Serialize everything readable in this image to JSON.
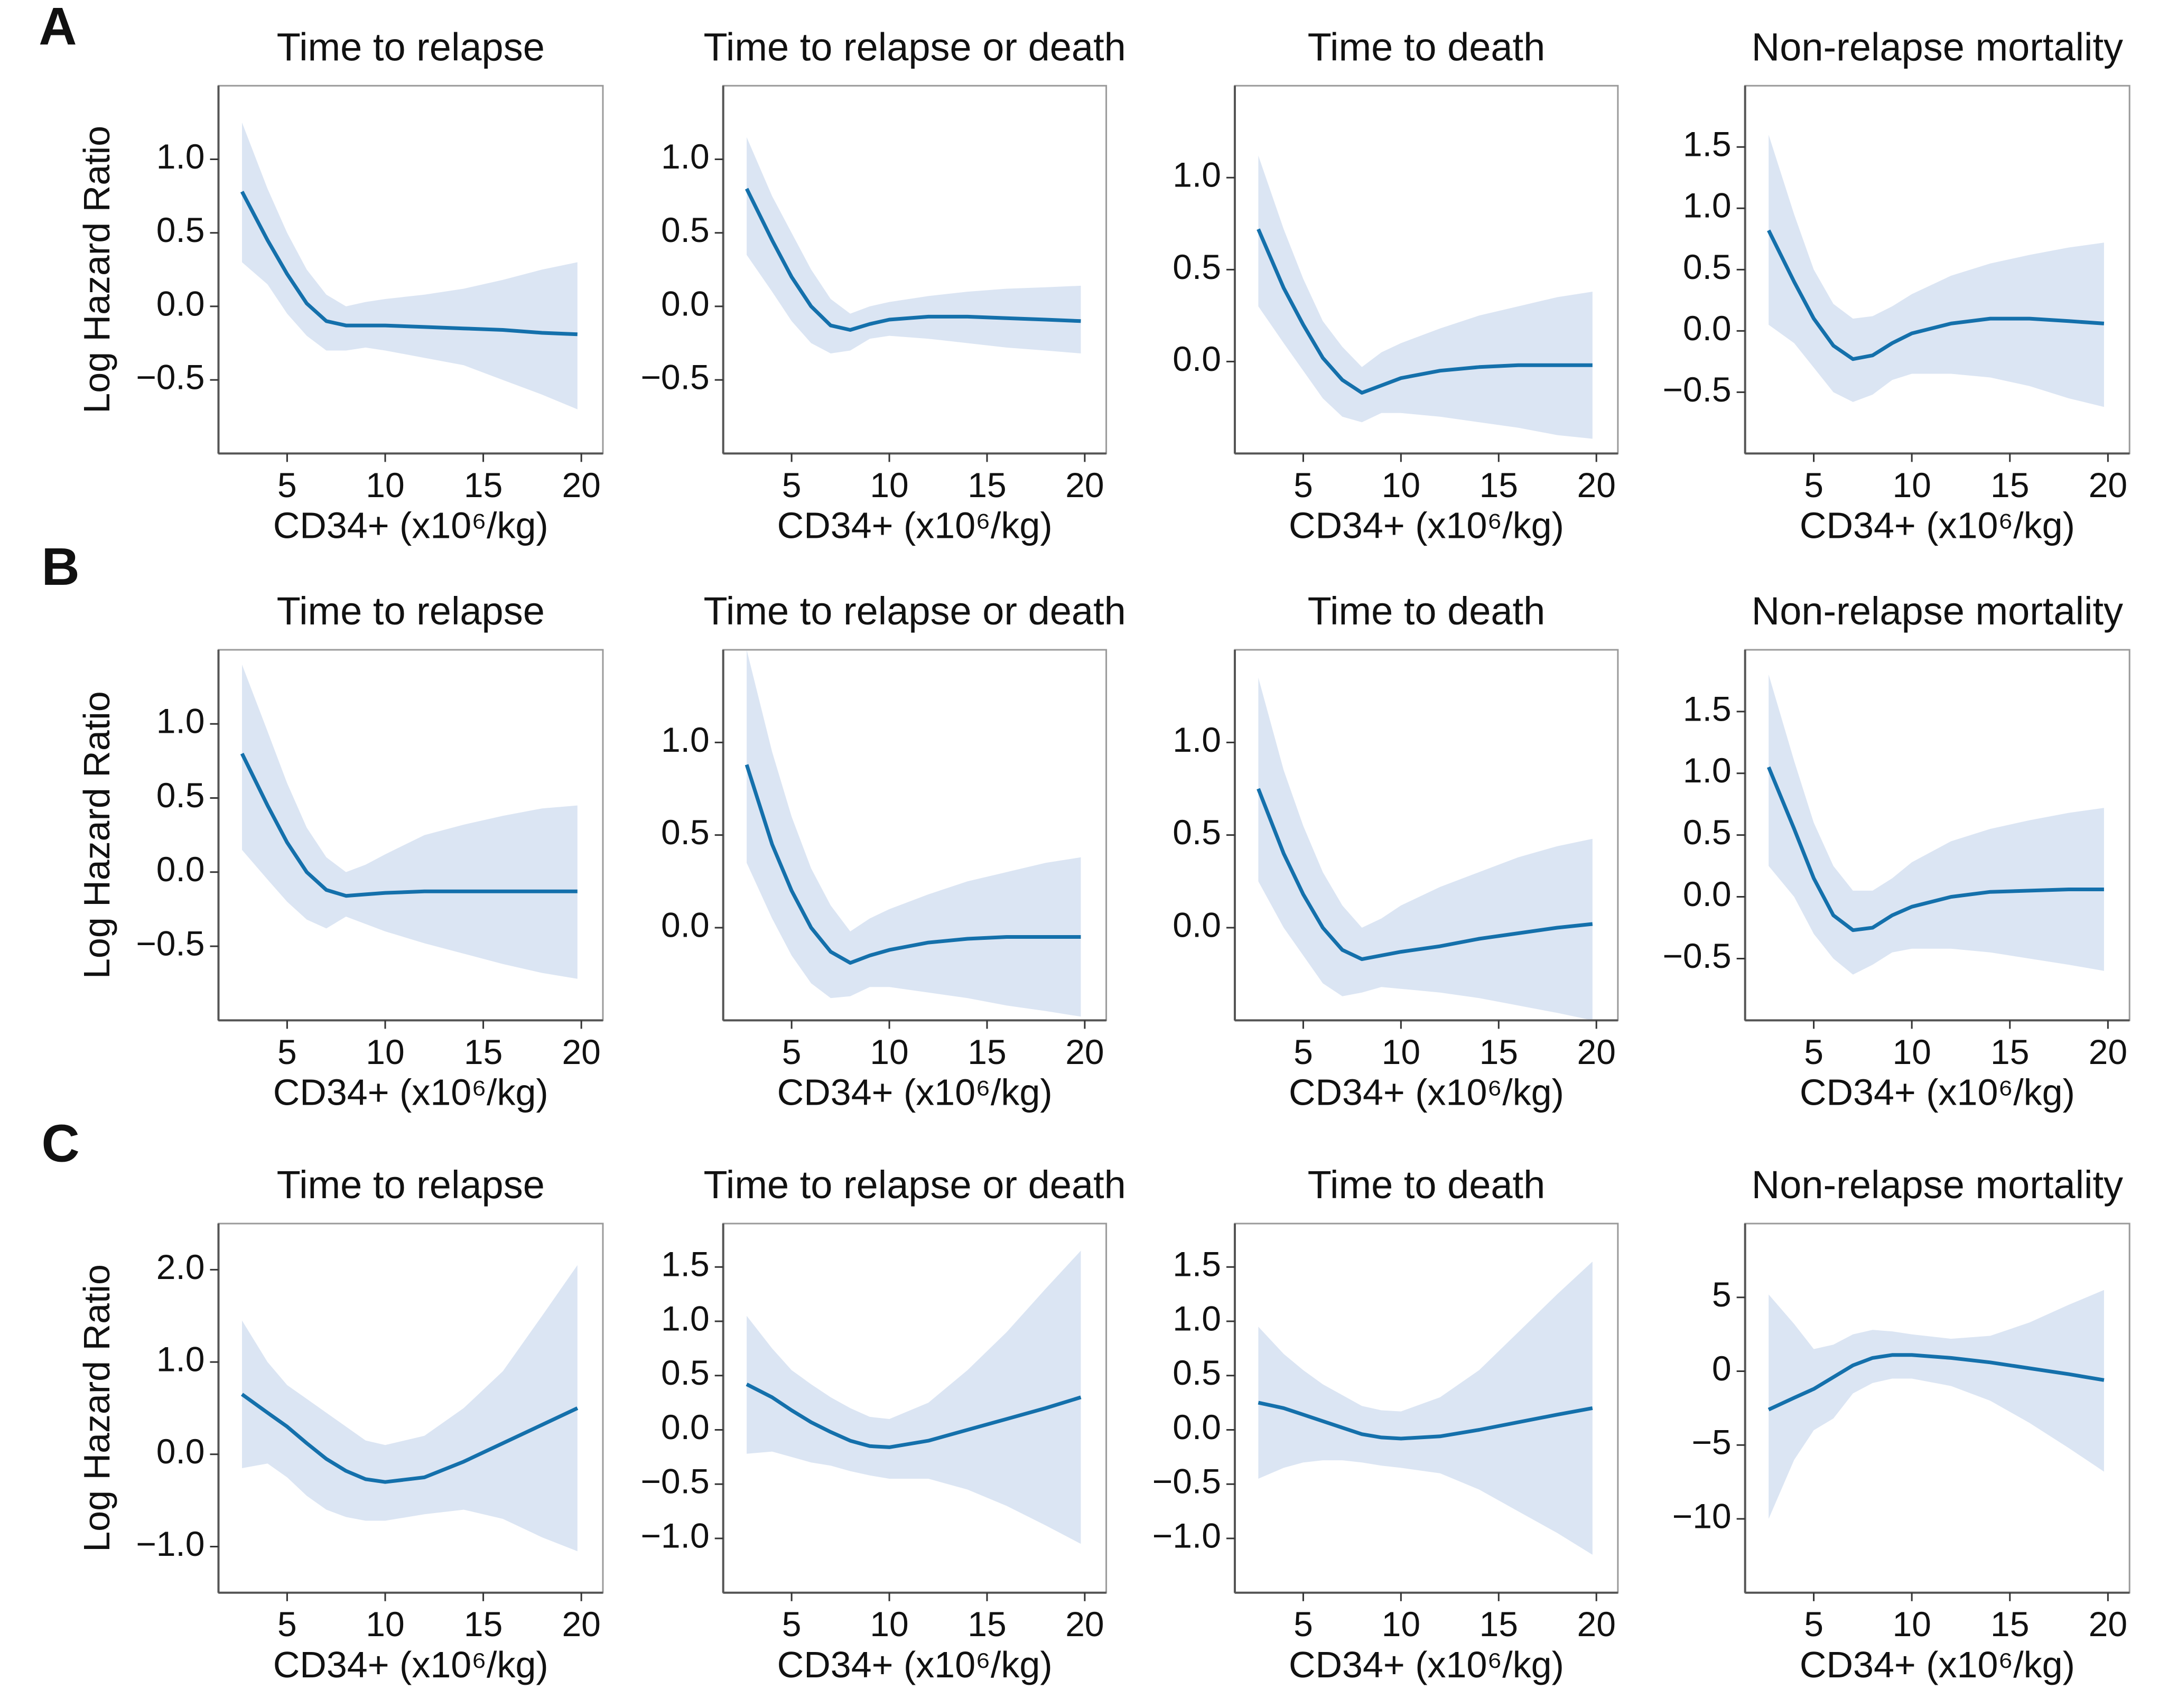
{
  "panel_labels": [
    "A",
    "B",
    "C"
  ],
  "chart_data": [
    {
      "type": "line",
      "title": "Time to relapse",
      "ylabel": "Log Hazard Ratio",
      "xlabel": "CD34+ (x10⁶/kg)",
      "color": "#1470ab",
      "band_color": "#dbe5f3",
      "x": [
        2.7,
        4,
        5,
        6,
        7,
        8,
        9,
        10,
        12,
        14,
        16,
        18,
        19.8
      ],
      "values": [
        0.78,
        0.45,
        0.22,
        0.02,
        -0.1,
        -0.13,
        -0.13,
        -0.13,
        -0.14,
        -0.15,
        -0.16,
        -0.18,
        -0.19
      ],
      "lower": [
        0.3,
        0.15,
        -0.05,
        -0.2,
        -0.3,
        -0.3,
        -0.28,
        -0.3,
        -0.35,
        -0.4,
        -0.5,
        -0.6,
        -0.7
      ],
      "upper": [
        1.25,
        0.8,
        0.5,
        0.25,
        0.08,
        0.0,
        0.03,
        0.05,
        0.08,
        0.12,
        0.18,
        0.25,
        0.3
      ],
      "xlim": [
        1.5,
        21.1
      ],
      "xticks": [
        5,
        10,
        15,
        20
      ],
      "ylim": [
        -1.0,
        1.5
      ],
      "yticks": [
        {
          "value": -0.5,
          "label": "−0.5"
        },
        {
          "value": 0,
          "label": "0.0"
        },
        0.5,
        {
          "value": 1,
          "label": "1.0"
        }
      ]
    },
    {
      "type": "line",
      "title": "Time to relapse or death",
      "xlabel": "CD34+ (x10⁶/kg)",
      "color": "#1470ab",
      "band_color": "#dbe5f3",
      "x": [
        2.7,
        4,
        5,
        6,
        7,
        8,
        9,
        10,
        12,
        14,
        16,
        18,
        19.8
      ],
      "values": [
        0.8,
        0.45,
        0.2,
        0.0,
        -0.13,
        -0.16,
        -0.12,
        -0.09,
        -0.07,
        -0.07,
        -0.08,
        -0.09,
        -0.1
      ],
      "lower": [
        0.35,
        0.1,
        -0.1,
        -0.25,
        -0.32,
        -0.3,
        -0.22,
        -0.2,
        -0.22,
        -0.25,
        -0.28,
        -0.3,
        -0.32
      ],
      "upper": [
        1.15,
        0.75,
        0.5,
        0.25,
        0.05,
        -0.05,
        0.0,
        0.03,
        0.07,
        0.1,
        0.12,
        0.13,
        0.14
      ],
      "xlim": [
        1.5,
        21.1
      ],
      "xticks": [
        5,
        10,
        15,
        20
      ],
      "ylim": [
        -1.0,
        1.5
      ],
      "yticks": [
        {
          "value": -0.5,
          "label": "−0.5"
        },
        {
          "value": 0,
          "label": "0.0"
        },
        0.5,
        {
          "value": 1,
          "label": "1.0"
        }
      ]
    },
    {
      "type": "line",
      "title": "Time to death",
      "xlabel": "CD34+ (x10⁶/kg)",
      "color": "#1470ab",
      "band_color": "#dbe5f3",
      "x": [
        2.7,
        4,
        5,
        6,
        7,
        8,
        9,
        10,
        12,
        14,
        16,
        18,
        19.8
      ],
      "values": [
        0.72,
        0.4,
        0.2,
        0.02,
        -0.1,
        -0.17,
        -0.13,
        -0.09,
        -0.05,
        -0.03,
        -0.02,
        -0.02,
        -0.02
      ],
      "lower": [
        0.3,
        0.1,
        -0.05,
        -0.2,
        -0.3,
        -0.33,
        -0.28,
        -0.28,
        -0.3,
        -0.33,
        -0.36,
        -0.4,
        -0.42
      ],
      "upper": [
        1.12,
        0.72,
        0.45,
        0.22,
        0.08,
        -0.03,
        0.05,
        0.1,
        0.18,
        0.25,
        0.3,
        0.35,
        0.38
      ],
      "xlim": [
        1.5,
        21.1
      ],
      "xticks": [
        5,
        10,
        15,
        20
      ],
      "ylim": [
        -0.5,
        1.5
      ],
      "yticks": [
        {
          "value": 0,
          "label": "0.0"
        },
        0.5,
        {
          "value": 1,
          "label": "1.0"
        }
      ]
    },
    {
      "type": "line",
      "title": "Non-relapse mortality",
      "xlabel": "CD34+ (x10⁶/kg)",
      "color": "#1470ab",
      "band_color": "#dbe5f3",
      "x": [
        2.7,
        4,
        5,
        6,
        7,
        8,
        9,
        10,
        12,
        14,
        16,
        18,
        19.8
      ],
      "values": [
        0.82,
        0.4,
        0.1,
        -0.12,
        -0.23,
        -0.2,
        -0.1,
        -0.02,
        0.06,
        0.1,
        0.1,
        0.08,
        0.06
      ],
      "lower": [
        0.05,
        -0.1,
        -0.3,
        -0.5,
        -0.58,
        -0.52,
        -0.4,
        -0.35,
        -0.35,
        -0.38,
        -0.45,
        -0.55,
        -0.62
      ],
      "upper": [
        1.6,
        0.95,
        0.5,
        0.22,
        0.1,
        0.12,
        0.2,
        0.3,
        0.45,
        0.55,
        0.62,
        0.68,
        0.72
      ],
      "xlim": [
        1.5,
        21.1
      ],
      "xticks": [
        5,
        10,
        15,
        20
      ],
      "ylim": [
        -1.0,
        2.0
      ],
      "yticks": [
        {
          "value": -0.5,
          "label": "−0.5"
        },
        {
          "value": 0,
          "label": "0.0"
        },
        0.5,
        {
          "value": 1,
          "label": "1.0"
        },
        1.5
      ]
    },
    {
      "type": "line",
      "title": "Time to relapse",
      "ylabel": "Log Hazard Ratio",
      "xlabel": "CD34+ (x10⁶/kg)",
      "color": "#1470ab",
      "band_color": "#dbe5f3",
      "x": [
        2.7,
        4,
        5,
        6,
        7,
        8,
        9,
        10,
        12,
        14,
        16,
        18,
        19.8
      ],
      "values": [
        0.8,
        0.45,
        0.2,
        0.0,
        -0.12,
        -0.16,
        -0.15,
        -0.14,
        -0.13,
        -0.13,
        -0.13,
        -0.13,
        -0.13
      ],
      "lower": [
        0.15,
        -0.05,
        -0.2,
        -0.32,
        -0.38,
        -0.3,
        -0.35,
        -0.4,
        -0.48,
        -0.55,
        -0.62,
        -0.68,
        -0.72
      ],
      "upper": [
        1.4,
        0.95,
        0.6,
        0.3,
        0.1,
        0.0,
        0.05,
        0.12,
        0.25,
        0.32,
        0.38,
        0.43,
        0.45
      ],
      "xlim": [
        1.5,
        21.1
      ],
      "xticks": [
        5,
        10,
        15,
        20
      ],
      "ylim": [
        -1.0,
        1.5
      ],
      "yticks": [
        {
          "value": -0.5,
          "label": "−0.5"
        },
        {
          "value": 0,
          "label": "0.0"
        },
        0.5,
        {
          "value": 1,
          "label": "1.0"
        }
      ]
    },
    {
      "type": "line",
      "title": "Time to relapse or death",
      "xlabel": "CD34+ (x10⁶/kg)",
      "color": "#1470ab",
      "band_color": "#dbe5f3",
      "x": [
        2.7,
        4,
        5,
        6,
        7,
        8,
        9,
        10,
        12,
        14,
        16,
        18,
        19.8
      ],
      "values": [
        0.88,
        0.45,
        0.2,
        0.0,
        -0.13,
        -0.19,
        -0.15,
        -0.12,
        -0.08,
        -0.06,
        -0.05,
        -0.05,
        -0.05
      ],
      "lower": [
        0.35,
        0.05,
        -0.15,
        -0.3,
        -0.38,
        -0.37,
        -0.32,
        -0.32,
        -0.35,
        -0.38,
        -0.42,
        -0.45,
        -0.48
      ],
      "upper": [
        1.5,
        0.95,
        0.6,
        0.32,
        0.12,
        -0.02,
        0.05,
        0.1,
        0.18,
        0.25,
        0.3,
        0.35,
        0.38
      ],
      "xlim": [
        1.5,
        21.1
      ],
      "xticks": [
        5,
        10,
        15,
        20
      ],
      "ylim": [
        -0.5,
        1.5
      ],
      "yticks": [
        {
          "value": 0,
          "label": "0.0"
        },
        0.5,
        {
          "value": 1,
          "label": "1.0"
        }
      ]
    },
    {
      "type": "line",
      "title": "Time to death",
      "xlabel": "CD34+ (x10⁶/kg)",
      "color": "#1470ab",
      "band_color": "#dbe5f3",
      "x": [
        2.7,
        4,
        5,
        6,
        7,
        8,
        9,
        10,
        12,
        14,
        16,
        18,
        19.8
      ],
      "values": [
        0.75,
        0.4,
        0.18,
        0.0,
        -0.12,
        -0.17,
        -0.15,
        -0.13,
        -0.1,
        -0.06,
        -0.03,
        0.0,
        0.02
      ],
      "lower": [
        0.25,
        0.0,
        -0.15,
        -0.3,
        -0.37,
        -0.35,
        -0.32,
        -0.33,
        -0.35,
        -0.38,
        -0.42,
        -0.46,
        -0.5
      ],
      "upper": [
        1.35,
        0.85,
        0.55,
        0.3,
        0.12,
        0.0,
        0.05,
        0.12,
        0.22,
        0.3,
        0.38,
        0.44,
        0.48
      ],
      "xlim": [
        1.5,
        21.1
      ],
      "xticks": [
        5,
        10,
        15,
        20
      ],
      "ylim": [
        -0.5,
        1.5
      ],
      "yticks": [
        {
          "value": 0,
          "label": "0.0"
        },
        0.5,
        {
          "value": 1,
          "label": "1.0"
        }
      ]
    },
    {
      "type": "line",
      "title": "Non-relapse mortality",
      "xlabel": "CD34+ (x10⁶/kg)",
      "color": "#1470ab",
      "band_color": "#dbe5f3",
      "x": [
        2.7,
        4,
        5,
        6,
        7,
        8,
        9,
        10,
        12,
        14,
        16,
        18,
        19.8
      ],
      "values": [
        1.05,
        0.55,
        0.15,
        -0.15,
        -0.27,
        -0.25,
        -0.15,
        -0.08,
        0.0,
        0.04,
        0.05,
        0.06,
        0.06
      ],
      "lower": [
        0.25,
        0.0,
        -0.3,
        -0.5,
        -0.63,
        -0.55,
        -0.45,
        -0.42,
        -0.42,
        -0.45,
        -0.5,
        -0.55,
        -0.6
      ],
      "upper": [
        1.8,
        1.1,
        0.6,
        0.25,
        0.05,
        0.05,
        0.15,
        0.28,
        0.45,
        0.55,
        0.62,
        0.68,
        0.72
      ],
      "xlim": [
        1.5,
        21.1
      ],
      "xticks": [
        5,
        10,
        15,
        20
      ],
      "ylim": [
        -1.0,
        2.0
      ],
      "yticks": [
        {
          "value": -0.5,
          "label": "−0.5"
        },
        {
          "value": 0,
          "label": "0.0"
        },
        0.5,
        {
          "value": 1,
          "label": "1.0"
        },
        1.5
      ]
    },
    {
      "type": "line",
      "title": "Time to relapse",
      "ylabel": "Log Hazard Ratio",
      "xlabel": "CD34+ (x10⁶/kg)",
      "color": "#1470ab",
      "band_color": "#dbe5f3",
      "x": [
        2.7,
        4,
        5,
        6,
        7,
        8,
        9,
        10,
        12,
        14,
        16,
        18,
        19.8
      ],
      "values": [
        0.65,
        0.45,
        0.3,
        0.12,
        -0.05,
        -0.18,
        -0.27,
        -0.3,
        -0.25,
        -0.08,
        0.12,
        0.32,
        0.5
      ],
      "lower": [
        -0.15,
        -0.1,
        -0.25,
        -0.45,
        -0.6,
        -0.68,
        -0.72,
        -0.72,
        -0.65,
        -0.6,
        -0.7,
        -0.9,
        -1.05
      ],
      "upper": [
        1.45,
        1.0,
        0.75,
        0.6,
        0.45,
        0.3,
        0.15,
        0.1,
        0.2,
        0.5,
        0.9,
        1.5,
        2.05
      ],
      "xlim": [
        1.5,
        21.1
      ],
      "xticks": [
        5,
        10,
        15,
        20
      ],
      "ylim": [
        -1.5,
        2.5
      ],
      "yticks": [
        {
          "value": -1,
          "label": "−1.0"
        },
        {
          "value": 0,
          "label": "0.0"
        },
        {
          "value": 1,
          "label": "1.0"
        },
        {
          "value": 2,
          "label": "2.0"
        }
      ]
    },
    {
      "type": "line",
      "title": "Time to relapse or death",
      "xlabel": "CD34+ (x10⁶/kg)",
      "color": "#1470ab",
      "band_color": "#dbe5f3",
      "x": [
        2.7,
        4,
        5,
        6,
        7,
        8,
        9,
        10,
        12,
        14,
        16,
        18,
        19.8
      ],
      "values": [
        0.42,
        0.3,
        0.18,
        0.07,
        -0.02,
        -0.1,
        -0.15,
        -0.16,
        -0.1,
        0.0,
        0.1,
        0.2,
        0.3
      ],
      "lower": [
        -0.22,
        -0.2,
        -0.25,
        -0.3,
        -0.33,
        -0.38,
        -0.42,
        -0.45,
        -0.45,
        -0.55,
        -0.7,
        -0.88,
        -1.05
      ],
      "upper": [
        1.05,
        0.75,
        0.55,
        0.42,
        0.3,
        0.2,
        0.12,
        0.1,
        0.25,
        0.55,
        0.9,
        1.3,
        1.65
      ],
      "xlim": [
        1.5,
        21.1
      ],
      "xticks": [
        5,
        10,
        15,
        20
      ],
      "ylim": [
        -1.5,
        1.9
      ],
      "yticks": [
        {
          "value": -1,
          "label": "−1.0"
        },
        {
          "value": -0.5,
          "label": "−0.5"
        },
        {
          "value": 0,
          "label": "0.0"
        },
        0.5,
        {
          "value": 1,
          "label": "1.0"
        },
        1.5
      ]
    },
    {
      "type": "line",
      "title": "Time to death",
      "xlabel": "CD34+ (x10⁶/kg)",
      "color": "#1470ab",
      "band_color": "#dbe5f3",
      "x": [
        2.7,
        4,
        5,
        6,
        7,
        8,
        9,
        10,
        12,
        14,
        16,
        18,
        19.8
      ],
      "values": [
        0.25,
        0.2,
        0.14,
        0.08,
        0.02,
        -0.04,
        -0.07,
        -0.08,
        -0.06,
        0.0,
        0.07,
        0.14,
        0.2
      ],
      "lower": [
        -0.45,
        -0.35,
        -0.3,
        -0.28,
        -0.28,
        -0.3,
        -0.33,
        -0.35,
        -0.4,
        -0.55,
        -0.75,
        -0.95,
        -1.15
      ],
      "upper": [
        0.95,
        0.7,
        0.55,
        0.42,
        0.32,
        0.22,
        0.18,
        0.17,
        0.3,
        0.55,
        0.9,
        1.25,
        1.55
      ],
      "xlim": [
        1.5,
        21.1
      ],
      "xticks": [
        5,
        10,
        15,
        20
      ],
      "ylim": [
        -1.5,
        1.9
      ],
      "yticks": [
        {
          "value": -1,
          "label": "−1.0"
        },
        {
          "value": -0.5,
          "label": "−0.5"
        },
        {
          "value": 0,
          "label": "0.0"
        },
        0.5,
        {
          "value": 1,
          "label": "1.0"
        },
        1.5
      ]
    },
    {
      "type": "line",
      "title": "Non-relapse mortality",
      "xlabel": "CD34+ (x10⁶/kg)",
      "color": "#1470ab",
      "band_color": "#dbe5f3",
      "x": [
        2.7,
        4,
        5,
        6,
        7,
        8,
        9,
        10,
        12,
        14,
        16,
        18,
        19.8
      ],
      "values": [
        -2.6,
        -1.8,
        -1.2,
        -0.4,
        0.4,
        0.9,
        1.1,
        1.1,
        0.9,
        0.6,
        0.2,
        -0.2,
        -0.6
      ],
      "lower": [
        -10,
        -6,
        -4,
        -3.2,
        -1.5,
        -0.8,
        -0.5,
        -0.5,
        -1,
        -2,
        -3.5,
        -5.2,
        -6.8
      ],
      "upper": [
        5.2,
        3.2,
        1.5,
        1.8,
        2.5,
        2.8,
        2.7,
        2.5,
        2.2,
        2.4,
        3.3,
        4.5,
        5.5
      ],
      "xlim": [
        1.5,
        21.1
      ],
      "xticks": [
        5,
        10,
        15,
        20
      ],
      "ylim": [
        -15,
        10
      ],
      "yticks": [
        {
          "value": -10,
          "label": "−10"
        },
        {
          "value": -5,
          "label": "−5"
        },
        0,
        5
      ]
    }
  ]
}
